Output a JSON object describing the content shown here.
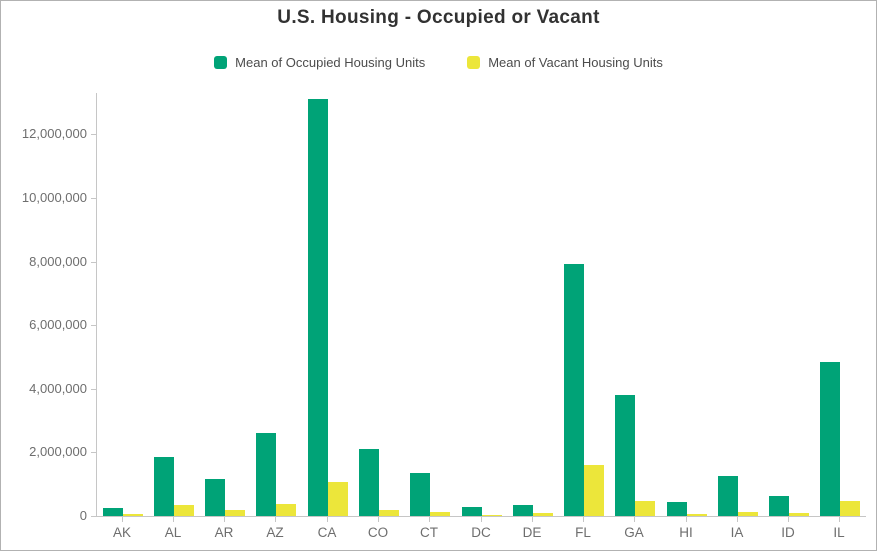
{
  "chart_data": {
    "type": "bar",
    "title": "U.S. Housing - Occupied or Vacant",
    "xlabel": "",
    "ylabel": "",
    "categories": [
      "AK",
      "AL",
      "AR",
      "AZ",
      "CA",
      "CO",
      "CT",
      "DC",
      "DE",
      "FL",
      "GA",
      "HI",
      "IA",
      "ID",
      "IL"
    ],
    "series": [
      {
        "name": "Mean of Occupied Housing Units",
        "color": "#00a377",
        "values": [
          240000,
          1870000,
          1150000,
          2610000,
          13100000,
          2100000,
          1360000,
          270000,
          340000,
          7930000,
          3800000,
          450000,
          1250000,
          620000,
          4850000
        ]
      },
      {
        "name": "Mean of Vacant Housing Units",
        "color": "#ece63a",
        "values": [
          60000,
          360000,
          180000,
          370000,
          1080000,
          200000,
          120000,
          40000,
          80000,
          1600000,
          480000,
          70000,
          120000,
          80000,
          470000
        ]
      }
    ],
    "ylim": [
      0,
      13300000
    ],
    "y_ticks": [
      0,
      2000000,
      4000000,
      6000000,
      8000000,
      10000000,
      12000000
    ],
    "y_tick_labels": [
      "0",
      "2,000,000",
      "4,000,000",
      "6,000,000",
      "8,000,000",
      "10,000,000",
      "12,000,000"
    ],
    "grid": false,
    "legend_position": "top"
  }
}
